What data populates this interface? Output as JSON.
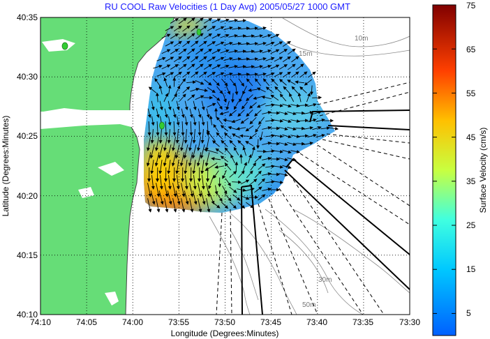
{
  "chart_data": {
    "type": "vector-field-map",
    "title": "RU COOL Raw Velocities (1 Day Avg) 2005/05/27 1000 GMT",
    "xlabel": "Longitude (Degrees:Minutes)",
    "ylabel": "Latitude (Degrees:Minutes)",
    "x_ticks": [
      "74:10",
      "74:05",
      "74:00",
      "73:55",
      "73:50",
      "73:45",
      "73:40",
      "73:35",
      "73:30"
    ],
    "y_ticks": [
      "40:35",
      "40:30",
      "40:25",
      "40:20",
      "40:15",
      "40:10"
    ],
    "xlim_minutes_west": [
      10,
      -30
    ],
    "ylim_minutes_north": [
      10,
      35
    ],
    "grid": true,
    "contour_labels": [
      "10m",
      "15m",
      "30m",
      "50m"
    ],
    "colorbar": {
      "label": "Surface Velocity (cm/s)",
      "ticks": [
        5,
        15,
        25,
        35,
        45,
        55,
        65,
        75
      ],
      "range": [
        0,
        75
      ],
      "colormap": "jet"
    },
    "colors": {
      "land": "#66dd77",
      "water": "#ffffff",
      "grid": "#000000",
      "contour": "#8a8a8a",
      "title": "#1a1aff",
      "site_marker": "#44cc44"
    }
  }
}
